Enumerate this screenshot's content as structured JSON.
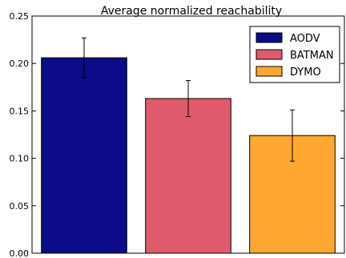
{
  "chart_data": {
    "type": "bar",
    "title": "Average normalized reachability",
    "xlabel": "",
    "ylabel": "",
    "categories": [
      "AODV",
      "BATMAN",
      "DYMO"
    ],
    "series": [
      {
        "name": "AODV",
        "color": "#0b0b87",
        "value": 0.206,
        "error": [
          0.185,
          0.227
        ]
      },
      {
        "name": "BATMAN",
        "color": "#df5b6b",
        "value": 0.163,
        "error": [
          0.144,
          0.182
        ]
      },
      {
        "name": "DYMO",
        "color": "#ffa733",
        "value": 0.124,
        "error": [
          0.097,
          0.151
        ]
      }
    ],
    "ylim": [
      0,
      0.25
    ],
    "yticks": [
      "0.00",
      "0.05",
      "0.10",
      "0.15",
      "0.20",
      "0.25"
    ],
    "legend_position": "top-right",
    "grid": false
  }
}
